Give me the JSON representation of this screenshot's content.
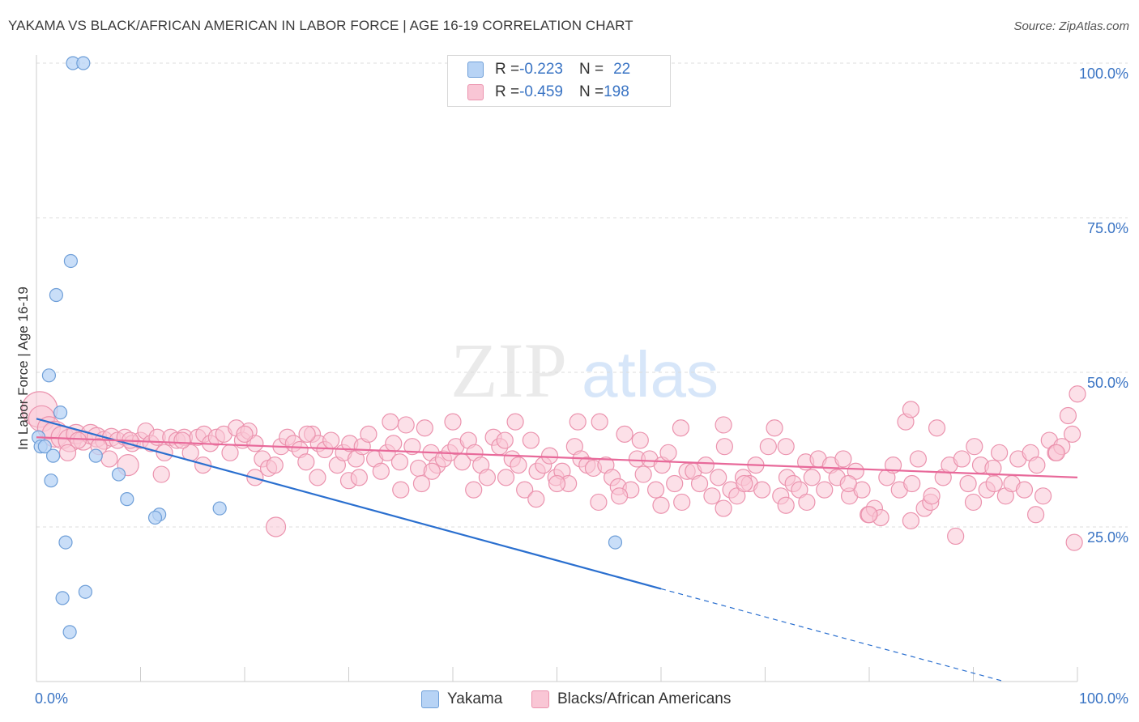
{
  "title": "YAKAMA VS BLACK/AFRICAN AMERICAN IN LABOR FORCE | AGE 16-19 CORRELATION CHART",
  "source": "Source: ZipAtlas.com",
  "watermark": {
    "zip": "ZIP",
    "atlas": "atlas"
  },
  "colors": {
    "yakama_fill": "#b7d3f5",
    "yakama_stroke": "#6f9fd8",
    "yakama_line": "#2a6fcf",
    "black_fill": "#f9c6d5",
    "black_stroke": "#eb93ae",
    "black_line": "#e8699a",
    "tick_label": "#3a74c4",
    "grid": "#dddddd"
  },
  "legend": {
    "rows": [
      {
        "r_label": "R = ",
        "r_value": "-0.223",
        "n_label": "N = ",
        "n_value": "22"
      },
      {
        "r_label": "R = ",
        "r_value": "-0.459",
        "n_label": "N = ",
        "n_value": "198"
      }
    ]
  },
  "bottom_legend": {
    "yakama": "Yakama",
    "black": "Blacks/African Americans"
  },
  "chart_data": {
    "type": "scatter",
    "title": "YAKAMA VS BLACK/AFRICAN AMERICAN IN LABOR FORCE | AGE 16-19 CORRELATION CHART",
    "xlabel": "",
    "ylabel": "In Labor Force | Age 16-19",
    "xlim": [
      0,
      100
    ],
    "ylim": [
      0,
      100
    ],
    "x_tick_labels": [
      "0.0%",
      "100.0%"
    ],
    "y_ticks": [
      {
        "value": 100,
        "label": "100.0%"
      },
      {
        "value": 75,
        "label": "75.0%"
      },
      {
        "value": 50,
        "label": "50.0%"
      },
      {
        "value": 25,
        "label": "25.0%"
      }
    ],
    "grid": "horizontal dashed",
    "legend_placement": "top-center",
    "series": [
      {
        "name": "Yakama",
        "r": -0.223,
        "n": 22,
        "trend": {
          "x0": 0,
          "y0": 42.5,
          "x1": 60,
          "y1": 15,
          "dashed_to_x": 93,
          "dashed_to_y": 0
        },
        "points": [
          [
            3.5,
            100
          ],
          [
            4.5,
            100
          ],
          [
            3.3,
            68
          ],
          [
            1.9,
            62.5
          ],
          [
            1.2,
            49.5
          ],
          [
            2.3,
            43.5
          ],
          [
            0.2,
            39.5
          ],
          [
            0.4,
            38
          ],
          [
            0.8,
            38
          ],
          [
            1.6,
            36.5
          ],
          [
            5.7,
            36.5
          ],
          [
            7.9,
            33.5
          ],
          [
            1.4,
            32.5
          ],
          [
            8.7,
            29.5
          ],
          [
            11.8,
            27
          ],
          [
            11.4,
            26.5
          ],
          [
            17.6,
            28
          ],
          [
            2.8,
            22.5
          ],
          [
            55.6,
            22.5
          ],
          [
            4.7,
            14.5
          ],
          [
            2.5,
            13.5
          ],
          [
            3.2,
            8
          ]
        ]
      },
      {
        "name": "Blacks/African Americans",
        "r": -0.459,
        "n": 198,
        "trend": {
          "x0": 0,
          "y0": 39.5,
          "x1": 100,
          "y1": 33
        },
        "points": [
          [
            0.3,
            44,
            22
          ],
          [
            0.5,
            42.5,
            16
          ],
          [
            1.2,
            41,
            14
          ],
          [
            1.8,
            40,
            16
          ],
          [
            2.5,
            39.5,
            14
          ],
          [
            3.2,
            39,
            14
          ],
          [
            3.8,
            40,
            12
          ],
          [
            4.5,
            39,
            12
          ],
          [
            5.2,
            40,
            12
          ],
          [
            5.8,
            39.5,
            12
          ],
          [
            6.5,
            39,
            11
          ],
          [
            7.2,
            39.5,
            11
          ],
          [
            7.8,
            39,
            10
          ],
          [
            8.5,
            39.5,
            10
          ],
          [
            9.2,
            38.5,
            10
          ],
          [
            10,
            39,
            10
          ],
          [
            10.5,
            40.5,
            10
          ],
          [
            11,
            38.5,
            10
          ],
          [
            11.6,
            39.5,
            10
          ],
          [
            12.3,
            37,
            10
          ],
          [
            12.9,
            39.5,
            10
          ],
          [
            13.5,
            39,
            10
          ],
          [
            14.2,
            39.5,
            10
          ],
          [
            14.8,
            37,
            10
          ],
          [
            15.5,
            39.5,
            10
          ],
          [
            16.1,
            40,
            10
          ],
          [
            16.7,
            38.5,
            10
          ],
          [
            17.3,
            39.5,
            10
          ],
          [
            8.8,
            35,
            13
          ],
          [
            18,
            40,
            10
          ],
          [
            18.6,
            37,
            10
          ],
          [
            19.2,
            41,
            10
          ],
          [
            19.8,
            39,
            10
          ],
          [
            20.4,
            40.5,
            10
          ],
          [
            21,
            38.5,
            10
          ],
          [
            21.7,
            36,
            10
          ],
          [
            22.3,
            34.5,
            10
          ],
          [
            22.9,
            35,
            10
          ],
          [
            23.5,
            38,
            10
          ],
          [
            24.1,
            39.5,
            10
          ],
          [
            24.7,
            38.5,
            10
          ],
          [
            25.3,
            37.5,
            10
          ],
          [
            25.9,
            35.5,
            10
          ],
          [
            26.5,
            40,
            10
          ],
          [
            27.1,
            38.5,
            10
          ],
          [
            27.7,
            37.5,
            10
          ],
          [
            28.3,
            39,
            10
          ],
          [
            28.9,
            35,
            10
          ],
          [
            29.5,
            37,
            10
          ],
          [
            30.1,
            38.5,
            10
          ],
          [
            30.7,
            36,
            10
          ],
          [
            31.3,
            38,
            10
          ],
          [
            31.9,
            40,
            10
          ],
          [
            32.5,
            36,
            10
          ],
          [
            33.1,
            34,
            10
          ],
          [
            33.7,
            37,
            10
          ],
          [
            34.3,
            38.5,
            10
          ],
          [
            34.9,
            35.5,
            10
          ],
          [
            35.5,
            41.5,
            10
          ],
          [
            36.1,
            38,
            10
          ],
          [
            36.7,
            34.5,
            10
          ],
          [
            37.3,
            41,
            10
          ],
          [
            37.9,
            37,
            10
          ],
          [
            38.5,
            35,
            10
          ],
          [
            39.1,
            36,
            10
          ],
          [
            39.7,
            37,
            10
          ],
          [
            40.3,
            38,
            10
          ],
          [
            40.9,
            35.5,
            10
          ],
          [
            41.5,
            39,
            10
          ],
          [
            42.1,
            37,
            10
          ],
          [
            42.7,
            35,
            10
          ],
          [
            43.3,
            33,
            10
          ],
          [
            43.9,
            39.5,
            10
          ],
          [
            44.5,
            38,
            10
          ],
          [
            45.1,
            33,
            10
          ],
          [
            45.7,
            36,
            10
          ],
          [
            46.3,
            35,
            10
          ],
          [
            46.9,
            31,
            10
          ],
          [
            47.5,
            39,
            10
          ],
          [
            48.1,
            34,
            10
          ],
          [
            48.7,
            35,
            10
          ],
          [
            49.3,
            36.5,
            10
          ],
          [
            49.9,
            33,
            10
          ],
          [
            50.5,
            34,
            10
          ],
          [
            51.1,
            32,
            10
          ],
          [
            51.7,
            38,
            10
          ],
          [
            52.3,
            36,
            10
          ],
          [
            52.9,
            35,
            10
          ],
          [
            53.5,
            34.5,
            10
          ],
          [
            54.1,
            42,
            10
          ],
          [
            54.7,
            35,
            10
          ],
          [
            55.3,
            33,
            10
          ],
          [
            55.9,
            31.5,
            10
          ],
          [
            56.5,
            40,
            10
          ],
          [
            57.1,
            31,
            10
          ],
          [
            57.7,
            36,
            10
          ],
          [
            58.3,
            33.5,
            10
          ],
          [
            58.9,
            36,
            10
          ],
          [
            59.5,
            31,
            10
          ],
          [
            60.1,
            35,
            10
          ],
          [
            60.7,
            37,
            10
          ],
          [
            61.3,
            32,
            10
          ],
          [
            61.9,
            41,
            10
          ],
          [
            62.5,
            34,
            10
          ],
          [
            63.1,
            34,
            10
          ],
          [
            63.7,
            32,
            10
          ],
          [
            64.3,
            35,
            10
          ],
          [
            64.9,
            30,
            10
          ],
          [
            65.5,
            33,
            10
          ],
          [
            66.1,
            38,
            10
          ],
          [
            66.7,
            31,
            10
          ],
          [
            67.3,
            30,
            10
          ],
          [
            67.9,
            33,
            10
          ],
          [
            68.5,
            32,
            10
          ],
          [
            69.1,
            35,
            10
          ],
          [
            69.7,
            31,
            10
          ],
          [
            70.3,
            38,
            10
          ],
          [
            70.9,
            41,
            10
          ],
          [
            71.5,
            30,
            10
          ],
          [
            72.1,
            33,
            10
          ],
          [
            72.7,
            32,
            10
          ],
          [
            73.3,
            31,
            10
          ],
          [
            73.9,
            35.5,
            10
          ],
          [
            74.5,
            33,
            10
          ],
          [
            75.1,
            36,
            10
          ],
          [
            75.7,
            31,
            10
          ],
          [
            76.3,
            35,
            10
          ],
          [
            76.9,
            33,
            10
          ],
          [
            77.5,
            36,
            10
          ],
          [
            78.1,
            30,
            10
          ],
          [
            78.7,
            34,
            10
          ],
          [
            79.3,
            31,
            10
          ],
          [
            79.9,
            27,
            10
          ],
          [
            80.5,
            28,
            10
          ],
          [
            81.1,
            26.5,
            10
          ],
          [
            81.7,
            33,
            10
          ],
          [
            82.3,
            35,
            10
          ],
          [
            82.9,
            31,
            10
          ],
          [
            83.5,
            42,
            10
          ],
          [
            84.1,
            32,
            10
          ],
          [
            84.7,
            36,
            10
          ],
          [
            85.3,
            28,
            10
          ],
          [
            85.9,
            29,
            10
          ],
          [
            86.5,
            41,
            10
          ],
          [
            87.1,
            33,
            10
          ],
          [
            87.7,
            35,
            10
          ],
          [
            88.3,
            23.5,
            10
          ],
          [
            88.9,
            36,
            10
          ],
          [
            89.5,
            32,
            10
          ],
          [
            90.1,
            38,
            10
          ],
          [
            90.7,
            35,
            10
          ],
          [
            91.3,
            31,
            10
          ],
          [
            91.9,
            34.5,
            10
          ],
          [
            92.5,
            37,
            10
          ],
          [
            93.1,
            30,
            10
          ],
          [
            93.7,
            32,
            10
          ],
          [
            94.3,
            36,
            10
          ],
          [
            94.9,
            31,
            10
          ],
          [
            95.5,
            37,
            10
          ],
          [
            96.1,
            35,
            10
          ],
          [
            96.7,
            30,
            10
          ],
          [
            97.3,
            39,
            10
          ],
          [
            97.9,
            37,
            10
          ],
          [
            98.5,
            38,
            10
          ],
          [
            99.1,
            43,
            10
          ],
          [
            99.7,
            22.5,
            10
          ],
          [
            100,
            46.5,
            10
          ],
          [
            84,
            44,
            10
          ],
          [
            72,
            38,
            10
          ],
          [
            66,
            41.5,
            10
          ],
          [
            58,
            39,
            10
          ],
          [
            52,
            42,
            10
          ],
          [
            46,
            42,
            10
          ],
          [
            40,
            42,
            10
          ],
          [
            34,
            42,
            10
          ],
          [
            26,
            40,
            10
          ],
          [
            20,
            40,
            10
          ],
          [
            14,
            39,
            10
          ],
          [
            9,
            39,
            10
          ],
          [
            4,
            39,
            10
          ],
          [
            23,
            25,
            12
          ],
          [
            30,
            32.5,
            10
          ],
          [
            37,
            32,
            10
          ],
          [
            50,
            32,
            10
          ],
          [
            56,
            30,
            10
          ],
          [
            62,
            29,
            10
          ],
          [
            68,
            32,
            10
          ],
          [
            74,
            29,
            10
          ],
          [
            80,
            27,
            10
          ],
          [
            86,
            30,
            10
          ],
          [
            92,
            32,
            10
          ],
          [
            98,
            37,
            10
          ],
          [
            35,
            31,
            10
          ],
          [
            42,
            31,
            10
          ],
          [
            48,
            29.5,
            10
          ],
          [
            54,
            29,
            10
          ],
          [
            60,
            28.5,
            10
          ],
          [
            66,
            28,
            10
          ],
          [
            72,
            28.5,
            10
          ],
          [
            78,
            32,
            10
          ],
          [
            84,
            26,
            10
          ],
          [
            90,
            29,
            10
          ],
          [
            96,
            27,
            10
          ],
          [
            99.5,
            40,
            10
          ],
          [
            45,
            39,
            10
          ],
          [
            38,
            34,
            10
          ],
          [
            31,
            33,
            10
          ],
          [
            27,
            33,
            10
          ],
          [
            21,
            33,
            10
          ],
          [
            16,
            35,
            10
          ],
          [
            12,
            33.5,
            10
          ],
          [
            6,
            38,
            10
          ],
          [
            3,
            37,
            10
          ],
          [
            7,
            36,
            10
          ]
        ]
      }
    ]
  }
}
